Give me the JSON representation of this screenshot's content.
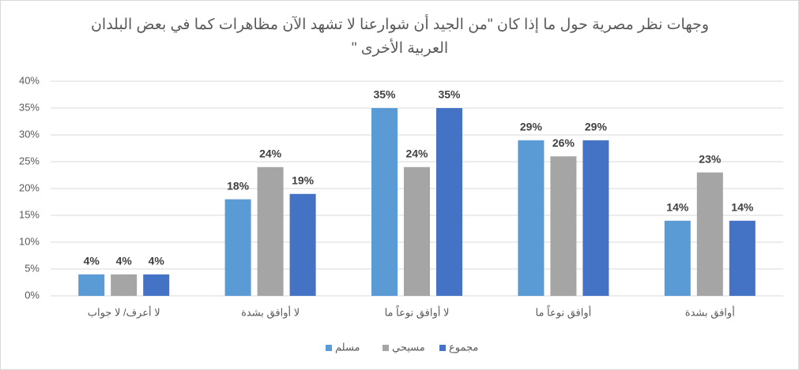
{
  "chart_data": {
    "type": "bar",
    "title": "وجهات نظر مصرية حول ما إذا كان \"من الجيد أن شوارعنا لا تشهد الآن مظاهرات كما في بعض البلدان العربية الأخرى \"",
    "categories": [
      "لا أعرف/ لا جواب",
      "لا أوافق بشدة",
      "لا أوافق نوعاً ما",
      "أوافق نوعاً ما",
      "أوافق بشدة"
    ],
    "series": [
      {
        "name": "مسلم",
        "color": "#5b9bd5",
        "values": [
          4,
          18,
          35,
          29,
          14
        ],
        "value_labels": [
          "4%",
          "18%",
          "35%",
          "29%",
          "14%"
        ]
      },
      {
        "name": "مسيحي",
        "color": "#a5a5a5",
        "values": [
          4,
          24,
          24,
          26,
          23
        ],
        "value_labels": [
          "4%",
          "24%",
          "24%",
          "26%",
          "23%"
        ]
      },
      {
        "name": "مجموع",
        "color": "#4472c4",
        "values": [
          4,
          19,
          35,
          29,
          14
        ],
        "value_labels": [
          "4%",
          "19%",
          "35%",
          "29%",
          "14%"
        ]
      }
    ],
    "ylim": [
      0,
      40
    ],
    "yticks": [
      {
        "value": 0,
        "label": "0%"
      },
      {
        "value": 5,
        "label": "5%"
      },
      {
        "value": 10,
        "label": "10%"
      },
      {
        "value": 15,
        "label": "15%"
      },
      {
        "value": 20,
        "label": "20%"
      },
      {
        "value": 25,
        "label": "25%"
      },
      {
        "value": 30,
        "label": "30%"
      },
      {
        "value": 35,
        "label": "35%"
      },
      {
        "value": 40,
        "label": "40%"
      }
    ],
    "grid": true,
    "legend": "bottom"
  }
}
